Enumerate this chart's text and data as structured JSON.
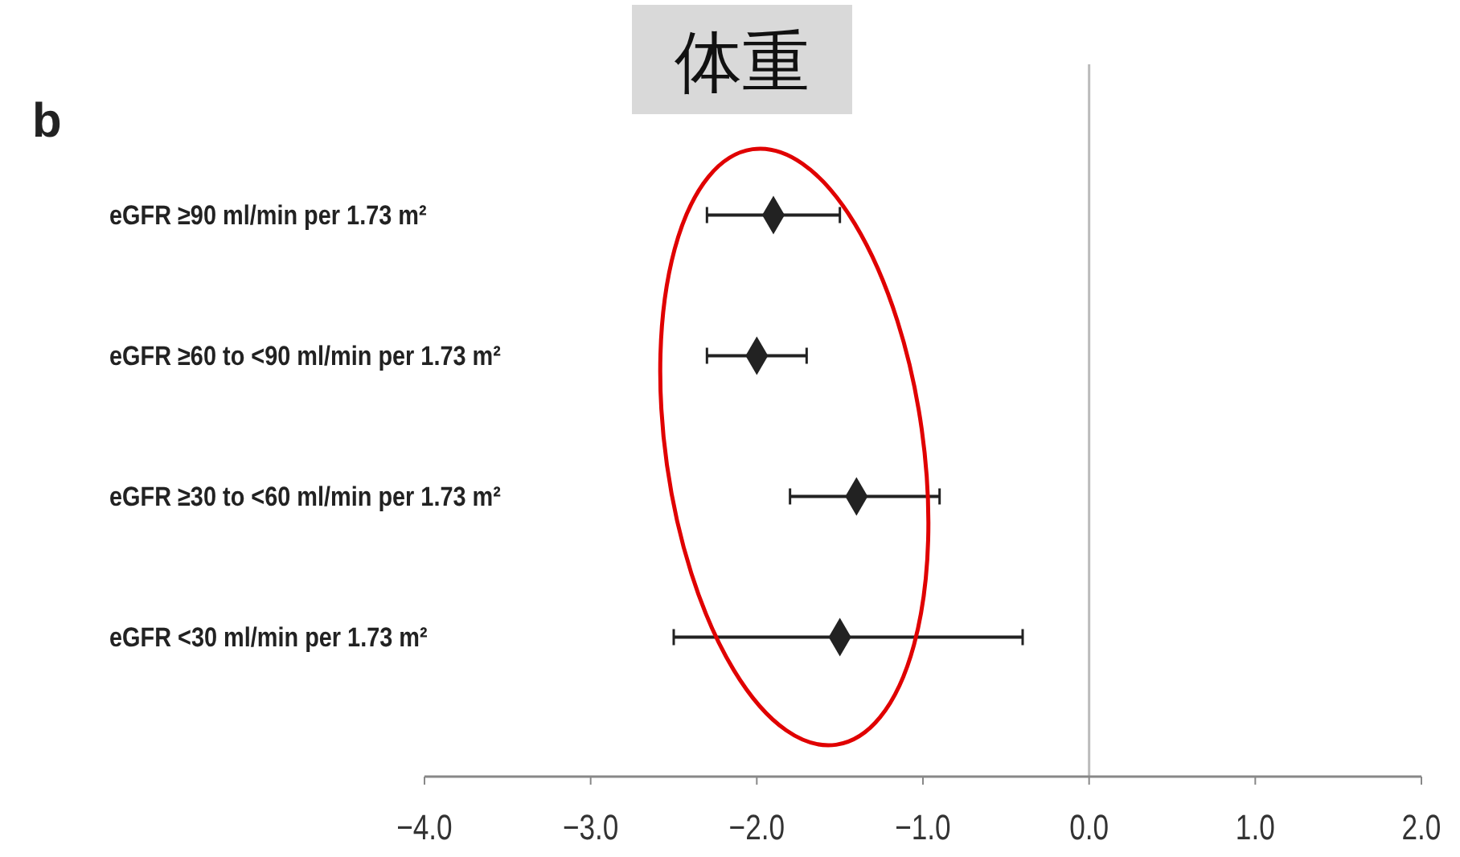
{
  "chart_data": {
    "type": "scatter",
    "orientation": "horizontal",
    "title": "体重",
    "annotations": [
      "b"
    ],
    "categories": [
      "eGFR ≥90 ml/min per 1.73 m²",
      "eGFR ≥60 to <90 ml/min per 1.73 m²",
      "eGFR ≥30 to <60 ml/min per 1.73 m²",
      "eGFR <30 ml/min per 1.73 m²"
    ],
    "values": [
      -1.9,
      -2.0,
      -1.4,
      -1.5
    ],
    "errors": [
      [
        -2.3,
        -1.5
      ],
      [
        -2.3,
        -1.7
      ],
      [
        -1.8,
        -0.9
      ],
      [
        -2.5,
        -0.4
      ]
    ],
    "color": "#222222",
    "marker": "diamond",
    "xlim": [
      -4,
      2
    ],
    "xticks": [
      {
        "value": -4,
        "label": "−4.0"
      },
      {
        "value": -3,
        "label": "−3.0"
      },
      {
        "value": -2,
        "label": "−2.0"
      },
      {
        "value": -1,
        "label": "−1.0"
      },
      {
        "value": 0,
        "label": "0.0"
      },
      {
        "value": 1,
        "label": "1.0"
      },
      {
        "value": 2,
        "label": "2.0"
      }
    ],
    "ref_lines": [
      {
        "axis": "x",
        "value": 0,
        "color": "#bbbbbb"
      }
    ],
    "grid": false
  }
}
